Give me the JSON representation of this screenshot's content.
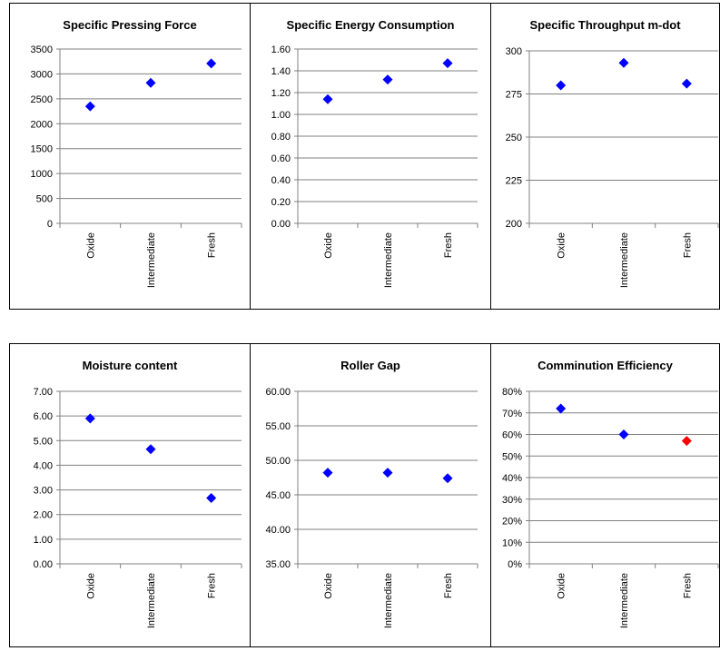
{
  "chart_data": [
    {
      "type": "scatter",
      "title": "Specific Pressing Force",
      "categories": [
        "Oxide",
        "Intermediate",
        "Fresh"
      ],
      "values": [
        2350,
        2820,
        3210
      ],
      "ylim": [
        0,
        3500
      ],
      "yticks": [
        "0",
        "500",
        "1000",
        "1500",
        "2000",
        "2500",
        "3000",
        "3500"
      ],
      "grid": true,
      "colors": [
        "#0000ff",
        "#0000ff",
        "#0000ff"
      ],
      "marker": "diamond"
    },
    {
      "type": "scatter",
      "title": "Specific Energy Consumption",
      "categories": [
        "Oxide",
        "Intermediate",
        "Fresh"
      ],
      "values": [
        1.14,
        1.32,
        1.47
      ],
      "ylim": [
        0,
        1.6
      ],
      "yticks": [
        "0.00",
        "0.20",
        "0.40",
        "0.60",
        "0.80",
        "1.00",
        "1.20",
        "1.40",
        "1.60"
      ],
      "grid": true,
      "colors": [
        "#0000ff",
        "#0000ff",
        "#0000ff"
      ],
      "marker": "diamond"
    },
    {
      "type": "scatter",
      "title": "Specific Throughput m-dot",
      "categories": [
        "Oxide",
        "Intermediate",
        "Fresh"
      ],
      "values": [
        280,
        293,
        281
      ],
      "ylim": [
        200,
        300
      ],
      "yticks": [
        "200",
        "225",
        "250",
        "275",
        "300"
      ],
      "grid": true,
      "colors": [
        "#0000ff",
        "#0000ff",
        "#0000ff"
      ],
      "marker": "diamond"
    },
    {
      "type": "scatter",
      "title": "Moisture content",
      "categories": [
        "Oxide",
        "Intermediate",
        "Fresh"
      ],
      "values": [
        5.9,
        4.65,
        2.67
      ],
      "ylim": [
        0,
        7
      ],
      "yticks": [
        "0.00",
        "1.00",
        "2.00",
        "3.00",
        "4.00",
        "5.00",
        "6.00",
        "7.00"
      ],
      "grid": true,
      "colors": [
        "#0000ff",
        "#0000ff",
        "#0000ff"
      ],
      "marker": "diamond"
    },
    {
      "type": "scatter",
      "title": "Roller Gap",
      "categories": [
        "Oxide",
        "Intermediate",
        "Fresh"
      ],
      "values": [
        48.2,
        48.2,
        47.4
      ],
      "ylim": [
        35,
        60
      ],
      "yticks": [
        "35.00",
        "40.00",
        "45.00",
        "50.00",
        "55.00",
        "60.00"
      ],
      "grid": true,
      "colors": [
        "#0000ff",
        "#0000ff",
        "#0000ff"
      ],
      "marker": "diamond"
    },
    {
      "type": "scatter",
      "title": "Comminution Efficiency",
      "categories": [
        "Oxide",
        "Intermediate",
        "Fresh"
      ],
      "values": [
        0.72,
        0.6,
        0.57
      ],
      "ylim": [
        0,
        0.8
      ],
      "yticks": [
        "0%",
        "10%",
        "20%",
        "30%",
        "40%",
        "50%",
        "60%",
        "70%",
        "80%"
      ],
      "grid": true,
      "colors": [
        "#0000ff",
        "#0000ff",
        "#ff0000"
      ],
      "marker": "diamond"
    }
  ]
}
